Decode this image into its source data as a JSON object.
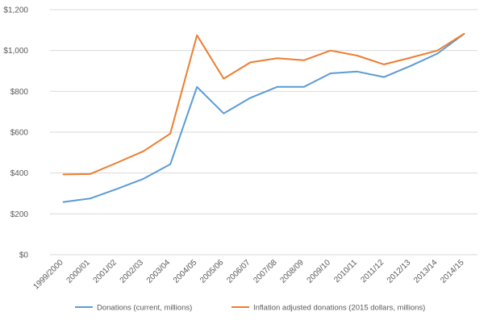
{
  "chart_data": {
    "type": "line",
    "title": "",
    "xlabel": "",
    "ylabel": "",
    "categories": [
      "1999/2000",
      "2000/01",
      "2001/02",
      "2002/03",
      "2003/04",
      "2004/05",
      "2005/06",
      "2006/07",
      "2007/08",
      "2008/09",
      "2009/10",
      "2010/11",
      "2011/12",
      "2012/13",
      "2013/14",
      "2014/15"
    ],
    "yticks": [
      "$0",
      "$200",
      "$400",
      "$600",
      "$800",
      "$1,000",
      "$1,200"
    ],
    "ylim": [
      0,
      1200
    ],
    "grid": true,
    "legend_position": "bottom",
    "series": [
      {
        "name": "Donations (current, millions)",
        "color": "#5B9BD5",
        "values": [
          258,
          275,
          322,
          372,
          443,
          822,
          692,
          768,
          822,
          822,
          888,
          897,
          870,
          925,
          985,
          1082
        ]
      },
      {
        "name": "Inflation adjusted donations (2015 dollars, millions)",
        "color": "#ED7D31",
        "values": [
          393,
          395,
          450,
          507,
          593,
          1075,
          862,
          942,
          962,
          952,
          1000,
          975,
          932,
          965,
          1000,
          1082
        ]
      }
    ]
  }
}
